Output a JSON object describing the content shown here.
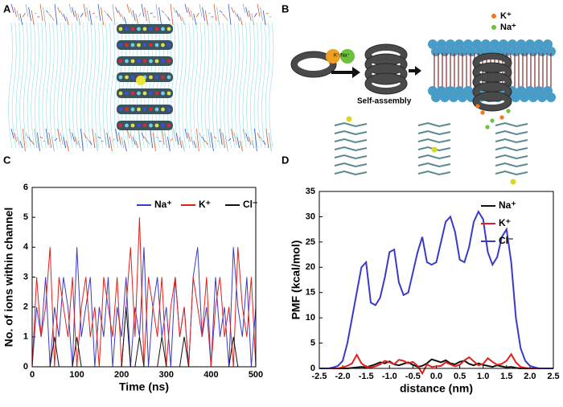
{
  "panels": {
    "labels": [
      "A",
      "B",
      "C",
      "D"
    ],
    "legend_k": "K⁺",
    "legend_na": "Na⁺",
    "ball_label": "K⁺/Na⁺",
    "assembly_label": "Self-assembly"
  },
  "chart_data": [
    {
      "type": "line",
      "xlabel": "Time (ns)",
      "ylabel": "No. of ions within channel",
      "x": [
        0,
        10,
        20,
        30,
        40,
        50,
        60,
        70,
        80,
        90,
        100,
        110,
        120,
        130,
        140,
        150,
        160,
        170,
        180,
        190,
        200,
        210,
        220,
        230,
        240,
        250,
        260,
        270,
        280,
        290,
        300,
        310,
        320,
        330,
        340,
        350,
        360,
        370,
        380,
        390,
        400,
        410,
        420,
        430,
        440,
        450,
        460,
        470,
        480,
        490,
        500
      ],
      "series": [
        {
          "name": "Na⁺",
          "color": "#3a3ac8",
          "values": [
            0,
            2,
            1,
            3,
            0,
            2,
            1,
            3,
            2,
            0,
            4,
            1,
            2,
            3,
            0,
            2,
            1,
            3,
            0,
            2,
            1,
            3,
            0,
            2,
            1,
            4,
            0,
            2,
            3,
            1,
            2,
            0,
            3,
            1,
            2,
            0,
            3,
            4,
            1,
            2,
            0,
            3,
            1,
            2,
            0,
            4,
            2,
            1,
            3,
            0,
            2
          ]
        },
        {
          "name": "K⁺",
          "color": "#e0201a",
          "values": [
            0,
            3,
            1,
            2,
            4,
            0,
            3,
            2,
            1,
            3,
            0,
            2,
            3,
            1,
            2,
            0,
            3,
            2,
            1,
            3,
            0,
            2,
            4,
            1,
            5,
            0,
            3,
            2,
            1,
            3,
            0,
            2,
            3,
            1,
            2,
            0,
            3,
            2,
            1,
            3,
            0,
            2,
            3,
            1,
            2,
            0,
            4,
            2,
            1,
            3,
            0
          ]
        },
        {
          "name": "Cl⁻",
          "color": "#111111",
          "values": [
            0,
            0,
            0,
            0,
            0,
            1,
            0,
            0,
            0,
            0,
            1,
            0,
            0,
            0,
            0,
            0,
            0,
            0,
            0,
            0,
            0,
            2,
            0,
            0,
            1,
            0,
            0,
            0,
            0,
            1,
            0,
            0,
            0,
            0,
            1,
            0,
            0,
            0,
            0,
            0,
            0,
            0,
            0,
            0,
            0,
            1,
            0,
            0,
            0,
            0,
            0
          ]
        }
      ],
      "xlim": [
        0,
        500
      ],
      "xticks": [
        0,
        100,
        200,
        300,
        400,
        500
      ],
      "ylim": [
        0,
        6
      ],
      "yticks": [
        0,
        1,
        2,
        3,
        4,
        5,
        6
      ],
      "legend": "upper right",
      "grid": false
    },
    {
      "type": "line",
      "xlabel": "distance (nm)",
      "ylabel": "PMF (kcal/mol)",
      "x": [
        -2.5,
        -2.4,
        -2.3,
        -2.2,
        -2.1,
        -2.0,
        -1.9,
        -1.8,
        -1.7,
        -1.6,
        -1.5,
        -1.4,
        -1.3,
        -1.2,
        -1.1,
        -1.0,
        -0.9,
        -0.8,
        -0.7,
        -0.6,
        -0.5,
        -0.4,
        -0.3,
        -0.2,
        -0.1,
        0,
        0.1,
        0.2,
        0.3,
        0.4,
        0.5,
        0.6,
        0.7,
        0.8,
        0.9,
        1.0,
        1.1,
        1.2,
        1.3,
        1.4,
        1.5,
        1.6,
        1.7,
        1.8,
        1.9,
        2.0,
        2.1,
        2.2,
        2.3,
        2.4,
        2.5
      ],
      "series": [
        {
          "name": "Na⁺",
          "color": "#111111",
          "values": [
            0,
            0,
            0,
            0,
            0,
            0,
            0,
            0.1,
            0.2,
            0.3,
            0.2,
            0.5,
            0.8,
            1.2,
            1.0,
            1.4,
            0.8,
            0.6,
            0.9,
            1.2,
            0.7,
            0.3,
            0.5,
            1.0,
            1.8,
            1.5,
            1.2,
            1.6,
            1.0,
            0.8,
            1.3,
            1.5,
            0.9,
            0.6,
            1.0,
            0.7,
            0.5,
            0.3,
            0.6,
            0.4,
            0.2,
            0.3,
            0.1,
            0,
            0,
            0,
            0,
            0,
            0,
            0,
            0
          ]
        },
        {
          "name": "K⁺",
          "color": "#e0201a",
          "values": [
            0,
            0,
            0,
            0,
            0,
            0.2,
            0.5,
            1.0,
            2.7,
            1.0,
            0.3,
            0.2,
            0.4,
            0.8,
            1.5,
            1.2,
            0.8,
            1.7,
            1.5,
            1.0,
            1.3,
            0.5,
            -1.0,
            0.8,
            0.3,
            0.4,
            0.5,
            1.2,
            0.8,
            0.4,
            0.7,
            1.6,
            2.2,
            1.4,
            0.6,
            0.9,
            2.0,
            1.3,
            0.7,
            0.9,
            1.5,
            2.8,
            1.2,
            0.3,
            0.1,
            0,
            0,
            0,
            0,
            0,
            0
          ]
        },
        {
          "name": "Cl⁻",
          "color": "#3a3ac8",
          "values": [
            0,
            0,
            0,
            0.2,
            0.5,
            1.5,
            5,
            10,
            15,
            20,
            21,
            13,
            12.5,
            14,
            18,
            23,
            23.5,
            17,
            14.5,
            15,
            19,
            23,
            26,
            21,
            20.5,
            21,
            25,
            29,
            30,
            27,
            21.5,
            21,
            24,
            29,
            31,
            29.5,
            23,
            20.5,
            22,
            26,
            27.5,
            21,
            10,
            4,
            1.5,
            0.5,
            0.2,
            0,
            0,
            0,
            0
          ]
        }
      ],
      "xlim": [
        -2.5,
        2.5
      ],
      "xticks": [
        -2.5,
        {
          "value": -2.0,
          "label": "-2.0"
        },
        -1.5,
        {
          "value": -1.0,
          "label": "-1.0"
        },
        -0.5,
        {
          "value": 0,
          "label": "0.0"
        },
        0.5,
        {
          "value": 1.0,
          "label": "1.0"
        },
        1.5,
        {
          "value": 2.0,
          "label": "2.0"
        },
        2.5
      ],
      "ylim": [
        0,
        35
      ],
      "yticks": [
        0,
        5,
        10,
        15,
        20,
        25,
        30,
        35
      ],
      "legend": "upper right",
      "grid": false
    }
  ]
}
